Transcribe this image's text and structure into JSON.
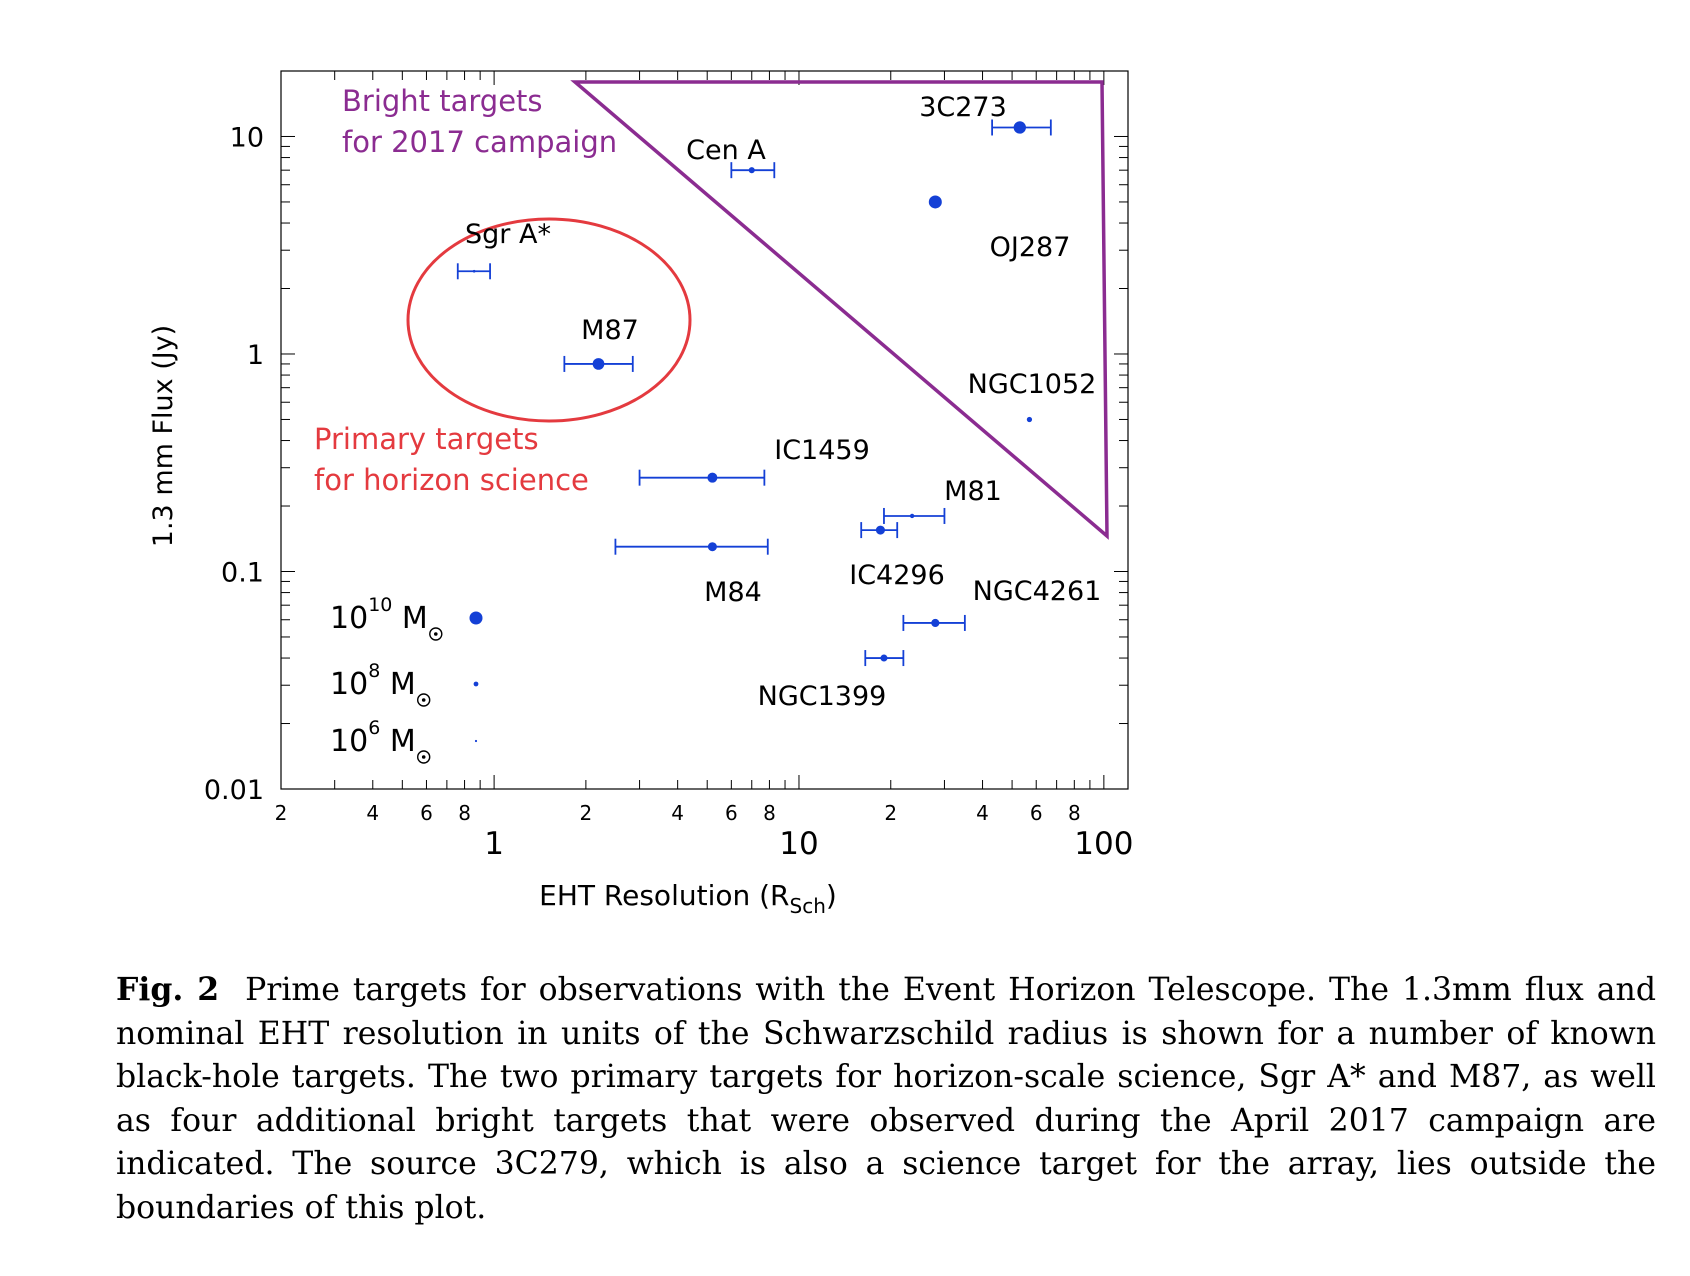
{
  "chart_data": {
    "type": "scatter",
    "x_scale": "log",
    "y_scale": "log",
    "xlabel": "EHT Resolution (R",
    "xlabel_sub": "Sch",
    "xlabel_close": ")",
    "ylabel": "1.3 mm Flux (Jy)",
    "xlim": [
      0.2,
      120
    ],
    "ylim": [
      0.01,
      20
    ],
    "x_major_ticks": [
      {
        "value": 1,
        "label": "1"
      },
      {
        "value": 10,
        "label": "10"
      },
      {
        "value": 100,
        "label": "100"
      }
    ],
    "x_minor_tick_labels": [
      {
        "value": 0.2,
        "label": "2"
      },
      {
        "value": 0.4,
        "label": "4"
      },
      {
        "value": 0.6,
        "label": "6"
      },
      {
        "value": 0.8,
        "label": "8"
      },
      {
        "value": 2,
        "label": "2"
      },
      {
        "value": 4,
        "label": "4"
      },
      {
        "value": 6,
        "label": "6"
      },
      {
        "value": 8,
        "label": "8"
      },
      {
        "value": 20,
        "label": "2"
      },
      {
        "value": 40,
        "label": "4"
      },
      {
        "value": 60,
        "label": "6"
      },
      {
        "value": 80,
        "label": "8"
      }
    ],
    "y_major_ticks": [
      {
        "value": 0.01,
        "label": "0.01"
      },
      {
        "value": 0.1,
        "label": "0.1"
      },
      {
        "value": 1,
        "label": "1"
      },
      {
        "value": 10,
        "label": "10"
      }
    ],
    "marker_color": "#1440d6",
    "points": [
      {
        "name": "3C273",
        "x": 53,
        "y": 11,
        "xerr": [
          43,
          67
        ],
        "mass_log": 9.9
      },
      {
        "name": "Cen A",
        "x": 7.0,
        "y": 7.0,
        "xerr": [
          6.0,
          8.3
        ],
        "mass_log": 8.5
      },
      {
        "name": "OJ287",
        "x": 28,
        "y": 5.0,
        "xerr": null,
        "mass_log": 10.0
      },
      {
        "name": "Sgr A*",
        "x": 0.86,
        "y": 2.4,
        "xerr": [
          0.76,
          0.97
        ],
        "mass_log": 6.6
      },
      {
        "name": "M87",
        "x": 2.2,
        "y": 0.9,
        "xerr": [
          1.7,
          2.85
        ],
        "mass_log": 9.8
      },
      {
        "name": "NGC1052",
        "x": 57,
        "y": 0.5,
        "xerr": null,
        "mass_log": 8.2
      },
      {
        "name": "IC1459",
        "x": 5.2,
        "y": 0.27,
        "xerr": [
          3.0,
          7.7
        ],
        "mass_log": 9.5
      },
      {
        "name": "M81",
        "x": 23.5,
        "y": 0.18,
        "xerr": [
          19,
          30
        ],
        "mass_log": 7.8
      },
      {
        "name": "IC4296",
        "x": 18.5,
        "y": 0.155,
        "xerr": [
          16,
          21
        ],
        "mass_log": 9.3
      },
      {
        "name": "M84",
        "x": 5.2,
        "y": 0.13,
        "xerr": [
          2.5,
          7.9
        ],
        "mass_log": 9.3
      },
      {
        "name": "NGC4261",
        "x": 28,
        "y": 0.058,
        "xerr": [
          22,
          35
        ],
        "mass_log": 9.1
      },
      {
        "name": "NGC1399",
        "x": 19,
        "y": 0.04,
        "xerr": [
          16.5,
          22
        ],
        "mass_log": 8.8
      }
    ],
    "legend": [
      {
        "mantissa": "10",
        "exponent": "10",
        "unit": "M",
        "mass_log": 10
      },
      {
        "mantissa": "10",
        "exponent": "8",
        "unit": "M",
        "mass_log": 8
      },
      {
        "mantissa": "10",
        "exponent": "6",
        "unit": "M",
        "mass_log": 6
      }
    ],
    "annotations": {
      "bright": {
        "lines": [
          "Bright targets",
          "for 2017 campaign"
        ],
        "color": "#8b2c91"
      },
      "primary": {
        "lines": [
          "Primary targets",
          "for horizon science"
        ],
        "color": "#e43a3f"
      }
    }
  },
  "caption": {
    "label": "Fig. 2",
    "text": "Prime targets for observations with the Event Horizon Telescope. The 1.3mm flux and nominal EHT resolution in units of the Schwarzschild radius is shown for a number of known black-hole targets. The two primary targets for horizon-scale science, Sgr A* and M87, as well as four additional bright targets that were observed during the April 2017 campaign are indicated. The source 3C279, which is also a science target for the array, lies outside the boundaries of this plot."
  }
}
